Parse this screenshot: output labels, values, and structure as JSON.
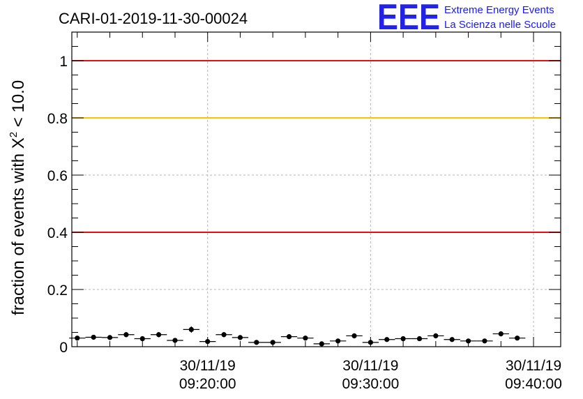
{
  "chart_data": {
    "type": "scatter",
    "title": "CARI-01-2019-11-30-00024",
    "ylabel_main": "fraction of events with Χ",
    "ylabel_sup": "2",
    "ylabel_tail": " < 10.0",
    "ylim": [
      0,
      1.1
    ],
    "xlim": [
      "2019-11-30 09:11:40",
      "2019-11-30 09:41:40"
    ],
    "yticks": [
      {
        "value": 0,
        "label": "0"
      },
      {
        "value": 0.2,
        "label": "0.2"
      },
      {
        "value": 0.4,
        "label": "0.4"
      },
      {
        "value": 0.6,
        "label": "0.6"
      },
      {
        "value": 0.8,
        "label": "0.8"
      },
      {
        "value": 1,
        "label": "1"
      }
    ],
    "xticks": [
      {
        "value": "2019-11-30 09:20:00",
        "date": "30/11/19",
        "time": "09:20:00"
      },
      {
        "value": "2019-11-30 09:30:00",
        "date": "30/11/19",
        "time": "09:30:00"
      },
      {
        "value": "2019-11-30 09:40:00",
        "date": "30/11/19",
        "time": "09:40:00"
      }
    ],
    "grid": true,
    "reference_lines": [
      {
        "y": 1.0,
        "color": "#e01010"
      },
      {
        "y": 0.8,
        "color": "#ffc000"
      },
      {
        "y": 0.4,
        "color": "#e01010"
      }
    ],
    "points": [
      {
        "x": "2019-11-30 09:12:00",
        "y": 0.03,
        "err": 0.008
      },
      {
        "x": "2019-11-30 09:13:00",
        "y": 0.033,
        "err": 0.008
      },
      {
        "x": "2019-11-30 09:14:00",
        "y": 0.032,
        "err": 0.008
      },
      {
        "x": "2019-11-30 09:15:00",
        "y": 0.042,
        "err": 0.009
      },
      {
        "x": "2019-11-30 09:16:00",
        "y": 0.028,
        "err": 0.008
      },
      {
        "x": "2019-11-30 09:17:00",
        "y": 0.042,
        "err": 0.009
      },
      {
        "x": "2019-11-30 09:18:00",
        "y": 0.022,
        "err": 0.007
      },
      {
        "x": "2019-11-30 09:19:00",
        "y": 0.06,
        "err": 0.011
      },
      {
        "x": "2019-11-30 09:20:00",
        "y": 0.018,
        "err": 0.006
      },
      {
        "x": "2019-11-30 09:21:00",
        "y": 0.042,
        "err": 0.009
      },
      {
        "x": "2019-11-30 09:22:00",
        "y": 0.032,
        "err": 0.008
      },
      {
        "x": "2019-11-30 09:23:00",
        "y": 0.015,
        "err": 0.006
      },
      {
        "x": "2019-11-30 09:24:00",
        "y": 0.015,
        "err": 0.006
      },
      {
        "x": "2019-11-30 09:25:00",
        "y": 0.035,
        "err": 0.008
      },
      {
        "x": "2019-11-30 09:26:00",
        "y": 0.03,
        "err": 0.008
      },
      {
        "x": "2019-11-30 09:27:00",
        "y": 0.01,
        "err": 0.005
      },
      {
        "x": "2019-11-30 09:28:00",
        "y": 0.02,
        "err": 0.007
      },
      {
        "x": "2019-11-30 09:29:00",
        "y": 0.038,
        "err": 0.009
      },
      {
        "x": "2019-11-30 09:30:00",
        "y": 0.015,
        "err": 0.006
      },
      {
        "x": "2019-11-30 09:31:00",
        "y": 0.025,
        "err": 0.007
      },
      {
        "x": "2019-11-30 09:32:00",
        "y": 0.028,
        "err": 0.008
      },
      {
        "x": "2019-11-30 09:33:00",
        "y": 0.028,
        "err": 0.008
      },
      {
        "x": "2019-11-30 09:34:00",
        "y": 0.038,
        "err": 0.009
      },
      {
        "x": "2019-11-30 09:35:00",
        "y": 0.025,
        "err": 0.007
      },
      {
        "x": "2019-11-30 09:36:00",
        "y": 0.02,
        "err": 0.007
      },
      {
        "x": "2019-11-30 09:37:00",
        "y": 0.02,
        "err": 0.007
      },
      {
        "x": "2019-11-30 09:38:00",
        "y": 0.045,
        "err": 0.009
      },
      {
        "x": "2019-11-30 09:39:00",
        "y": 0.03,
        "err": 0.008
      }
    ]
  },
  "logo": {
    "mark": "EEE",
    "line1": "Extreme Energy Events",
    "line2": "La Scienza nelle Scuole"
  },
  "colors": {
    "logo_blue": "#2323e6",
    "marker": "#000000",
    "grid": "#b4b4b4"
  }
}
